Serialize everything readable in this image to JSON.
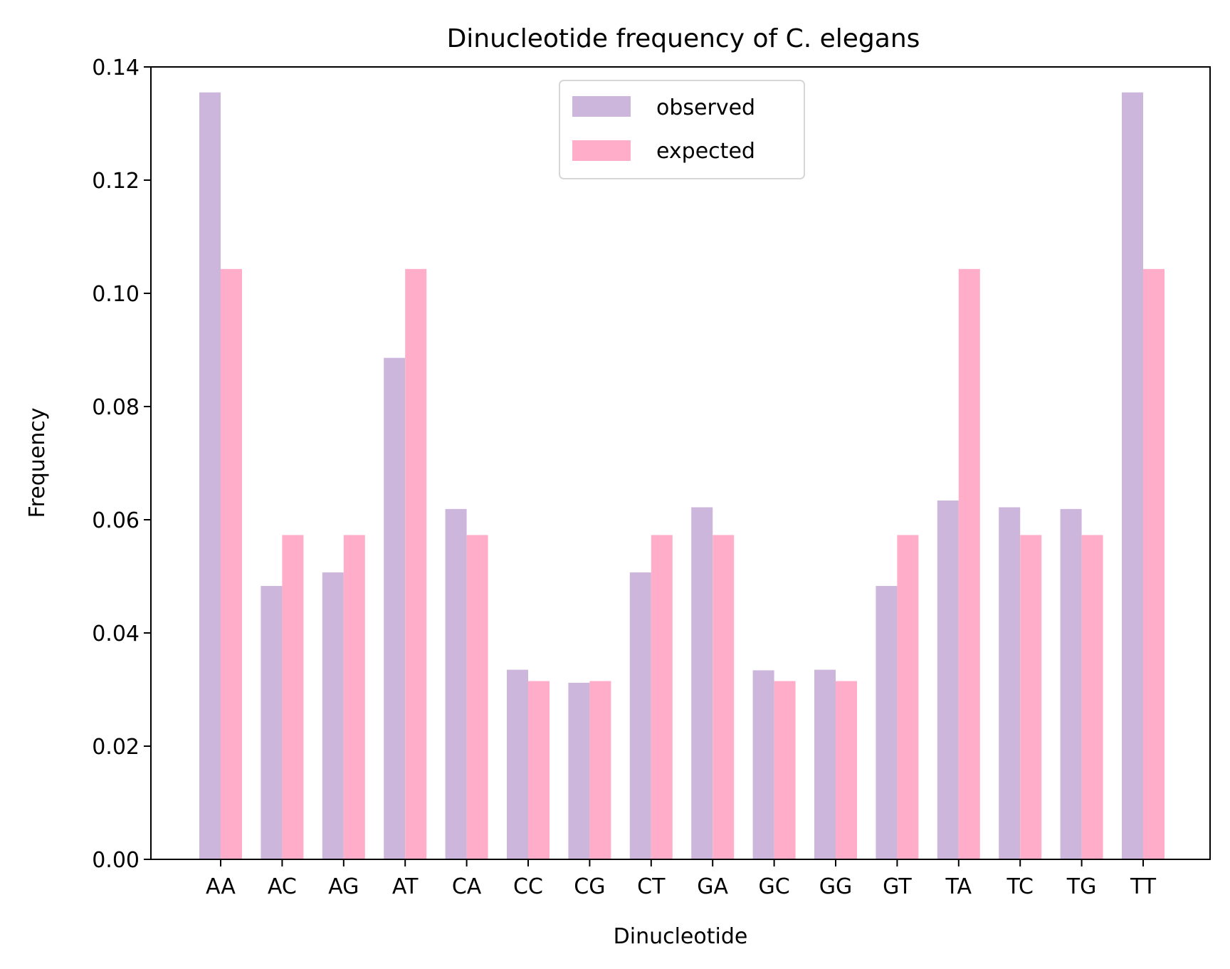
{
  "chart_data": {
    "type": "bar",
    "title": "Dinucleotide frequency of C. elegans",
    "xlabel": "Dinucleotide",
    "ylabel": "Frequency",
    "ylim": [
      0,
      0.14
    ],
    "yticks": [
      "0.00",
      "0.02",
      "0.04",
      "0.06",
      "0.08",
      "0.10",
      "0.12",
      "0.14"
    ],
    "categories": [
      "AA",
      "AC",
      "AG",
      "AT",
      "CA",
      "CC",
      "CG",
      "CT",
      "GA",
      "GC",
      "GG",
      "GT",
      "TA",
      "TC",
      "TG",
      "TT"
    ],
    "series": [
      {
        "name": "observed",
        "color": "#cdb6db",
        "values": [
          0.1355,
          0.0483,
          0.0507,
          0.0886,
          0.0619,
          0.0335,
          0.0312,
          0.0507,
          0.0622,
          0.0334,
          0.0335,
          0.0483,
          0.0634,
          0.0622,
          0.0619,
          0.1355
        ]
      },
      {
        "name": "expected",
        "color": "#ffadc9",
        "values": [
          0.1043,
          0.0573,
          0.0573,
          0.1043,
          0.0573,
          0.0315,
          0.0315,
          0.0573,
          0.0573,
          0.0315,
          0.0315,
          0.0573,
          0.1043,
          0.0573,
          0.0573,
          0.1043
        ]
      }
    ],
    "legend_position": "top-center",
    "grid": false
  }
}
